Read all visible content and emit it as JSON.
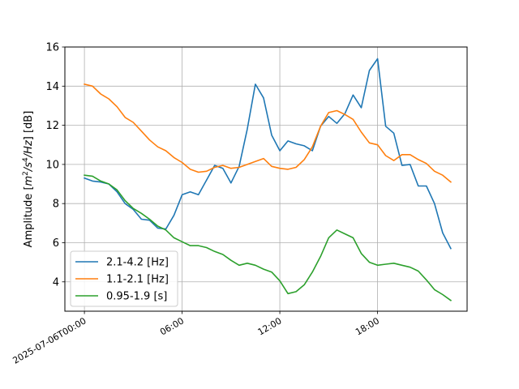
{
  "chart_data": {
    "type": "line",
    "title": "",
    "xlabel": "",
    "ylabel_main": "Amplitude [",
    "ylabel_unit_tex": "m^2/s^4/Hz",
    "ylabel_suffix": "] [dB]",
    "ylim": [
      2.5,
      16
    ],
    "yticks": [
      4,
      6,
      8,
      10,
      12,
      14,
      16
    ],
    "ytick_labels": [
      "4",
      "6",
      "8",
      "10",
      "12",
      "14",
      "16"
    ],
    "xlim_hours": [
      -1.2,
      23.5
    ],
    "xticks_hours": [
      0,
      6,
      12,
      18
    ],
    "xtick_labels": [
      "2025-07-06T00:00",
      "06:00",
      "12:00",
      "18:00"
    ],
    "grid": true,
    "legend_position": "lower-left",
    "x_hours": [
      0,
      0.5,
      1,
      1.5,
      2,
      2.5,
      3,
      3.5,
      4,
      4.5,
      5,
      5.5,
      6,
      6.5,
      7,
      7.5,
      8,
      8.5,
      9,
      9.5,
      10,
      10.5,
      11,
      11.5,
      12,
      12.5,
      13,
      13.5,
      14,
      14.5,
      15,
      15.5,
      16,
      16.5,
      17,
      17.5,
      18,
      18.5,
      19,
      19.5,
      20,
      20.5,
      21,
      21.5,
      22,
      22.5
    ],
    "series": [
      {
        "name": "2.1-4.2 [Hz]",
        "color": "#1f77b4",
        "values": [
          9.3,
          9.15,
          9.1,
          9.0,
          8.6,
          8.0,
          7.7,
          7.2,
          7.15,
          6.75,
          6.7,
          7.4,
          8.45,
          8.6,
          8.45,
          9.2,
          9.95,
          9.8,
          9.05,
          9.9,
          11.8,
          14.1,
          13.4,
          11.5,
          10.7,
          11.2,
          11.05,
          10.95,
          10.7,
          11.95,
          12.45,
          12.1,
          12.6,
          13.55,
          12.9,
          14.8,
          15.4,
          11.95,
          11.6,
          9.95,
          10.0,
          8.9,
          8.9,
          8.0,
          6.5,
          5.7
        ]
      },
      {
        "name": "1.1-2.1 [Hz]",
        "color": "#ff7f0e",
        "values": [
          14.1,
          14.0,
          13.6,
          13.35,
          12.95,
          12.4,
          12.15,
          11.7,
          11.25,
          10.9,
          10.7,
          10.35,
          10.1,
          9.75,
          9.6,
          9.65,
          9.85,
          9.95,
          9.8,
          9.85,
          10.0,
          10.15,
          10.3,
          9.9,
          9.8,
          9.75,
          9.85,
          10.25,
          10.9,
          11.95,
          12.65,
          12.75,
          12.55,
          12.3,
          11.65,
          11.1,
          11.0,
          10.45,
          10.2,
          10.5,
          10.5,
          10.25,
          10.05,
          9.65,
          9.45,
          9.1
        ]
      },
      {
        "name": "0.95-1.9 [s]",
        "color": "#2ca02c",
        "values": [
          9.45,
          9.4,
          9.15,
          9.0,
          8.7,
          8.15,
          7.75,
          7.5,
          7.2,
          6.85,
          6.65,
          6.25,
          6.05,
          5.85,
          5.85,
          5.75,
          5.55,
          5.4,
          5.1,
          4.85,
          4.95,
          4.85,
          4.65,
          4.5,
          4.05,
          3.4,
          3.5,
          3.85,
          4.5,
          5.3,
          6.25,
          6.65,
          6.45,
          6.25,
          5.45,
          5.0,
          4.85,
          4.9,
          4.95,
          4.85,
          4.75,
          4.55,
          4.1,
          3.6,
          3.35,
          3.05
        ]
      }
    ]
  }
}
